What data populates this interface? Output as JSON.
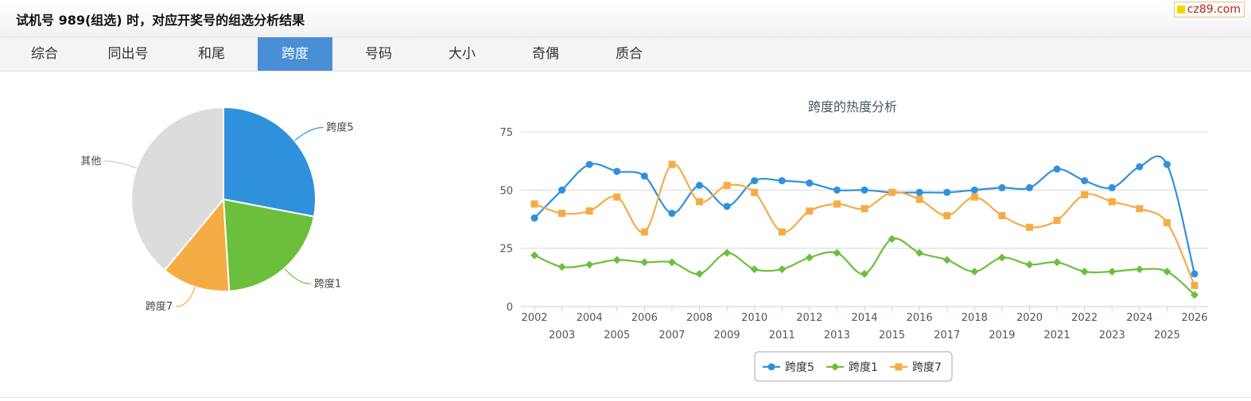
{
  "header": {
    "title": "试机号 989(组选) 时，对应开奖号的组选分析结果",
    "brand": "cz89.com"
  },
  "tabs": [
    {
      "label": "综合",
      "active": false
    },
    {
      "label": "同出号",
      "active": false
    },
    {
      "label": "和尾",
      "active": false
    },
    {
      "label": "跨度",
      "active": true
    },
    {
      "label": "号码",
      "active": false
    },
    {
      "label": "大小",
      "active": false
    },
    {
      "label": "奇偶",
      "active": false
    },
    {
      "label": "质合",
      "active": false
    }
  ],
  "pie": {
    "slices": [
      {
        "name": "跨度5",
        "value": 28,
        "color": "#2f91db"
      },
      {
        "name": "跨度1",
        "value": 21,
        "color": "#6cbf3c"
      },
      {
        "name": "跨度7",
        "value": 12,
        "color": "#f5ac45"
      },
      {
        "name": "其他",
        "value": 39,
        "color": "#dcdcdc"
      }
    ]
  },
  "chart_data": [
    {
      "type": "pie",
      "labels": [
        "跨度5",
        "跨度1",
        "跨度7",
        "其他"
      ],
      "values": [
        28,
        21,
        12,
        39
      ]
    },
    {
      "type": "line",
      "title": "跨度的热度分析",
      "x": [
        "2002",
        "2003",
        "2004",
        "2005",
        "2006",
        "2007",
        "2008",
        "2009",
        "2010",
        "2011",
        "2012",
        "2013",
        "2014",
        "2015",
        "2016",
        "2017",
        "2018",
        "2019",
        "2020",
        "2021",
        "2022",
        "2023",
        "2024",
        "2025",
        "2026"
      ],
      "yticks": [
        "0",
        "25",
        "50",
        "75"
      ],
      "ylim": [
        0,
        75
      ],
      "grid": true,
      "legend_position": "bottom",
      "series": [
        {
          "name": "跨度5",
          "color": "#2f91db",
          "marker": "circle",
          "values": [
            38,
            50,
            61,
            58,
            56,
            40,
            52,
            43,
            54,
            54,
            53,
            50,
            50,
            49,
            49,
            49,
            50,
            51,
            51,
            59,
            54,
            51,
            60,
            61,
            14
          ]
        },
        {
          "name": "跨度1",
          "color": "#6cbf3c",
          "marker": "diamond",
          "values": [
            22,
            17,
            18,
            20,
            19,
            19,
            14,
            23,
            16,
            16,
            21,
            23,
            14,
            29,
            23,
            20,
            15,
            21,
            18,
            19,
            15,
            15,
            16,
            15,
            5
          ]
        },
        {
          "name": "跨度7",
          "color": "#f5ac45",
          "marker": "square",
          "values": [
            44,
            40,
            41,
            47,
            32,
            61,
            45,
            52,
            49,
            32,
            41,
            44,
            42,
            49,
            46,
            39,
            47,
            39,
            34,
            37,
            48,
            45,
            42,
            36,
            9
          ]
        }
      ]
    }
  ]
}
